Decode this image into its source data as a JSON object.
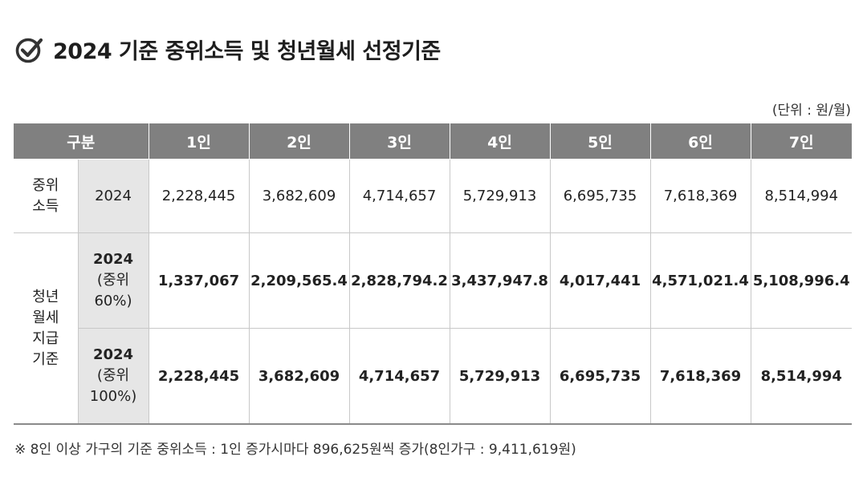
{
  "title": "2024 기준 중위소득 및 청년월세 선정기준",
  "unit": "(단위 : 원/월)",
  "table": {
    "headers": [
      "구분",
      "1인",
      "2인",
      "3인",
      "4인",
      "5인",
      "6인",
      "7인"
    ],
    "median": {
      "label_line1": "중위",
      "label_line2": "소득",
      "year": "2024",
      "values": [
        "2,228,445",
        "3,682,609",
        "4,714,657",
        "5,729,913",
        "6,695,735",
        "7,618,369",
        "8,514,994"
      ]
    },
    "youth": {
      "label_lines": [
        "청년",
        "월세",
        "지급",
        "기준"
      ],
      "row60": {
        "year": "2024",
        "sub1": "(중위",
        "sub2": "60%)",
        "values": [
          "1,337,067",
          "2,209,565.4",
          "2,828,794.2",
          "3,437,947.8",
          "4,017,441",
          "4,571,021.4",
          "5,108,996.4"
        ]
      },
      "row100": {
        "year": "2024",
        "sub1": "(중위",
        "sub2": "100%)",
        "values": [
          "2,228,445",
          "3,682,609",
          "4,714,657",
          "5,729,913",
          "6,695,735",
          "7,618,369",
          "8,514,994"
        ]
      }
    }
  },
  "note": "※ 8인 이상 가구의 기준 중위소득 : 1인 증가시마다 896,625원씩 증가(8인가구 : 9,411,619원)",
  "colors": {
    "header_bg": "#808080",
    "label_bg": "#e6e6e6",
    "icon": "#333333"
  }
}
